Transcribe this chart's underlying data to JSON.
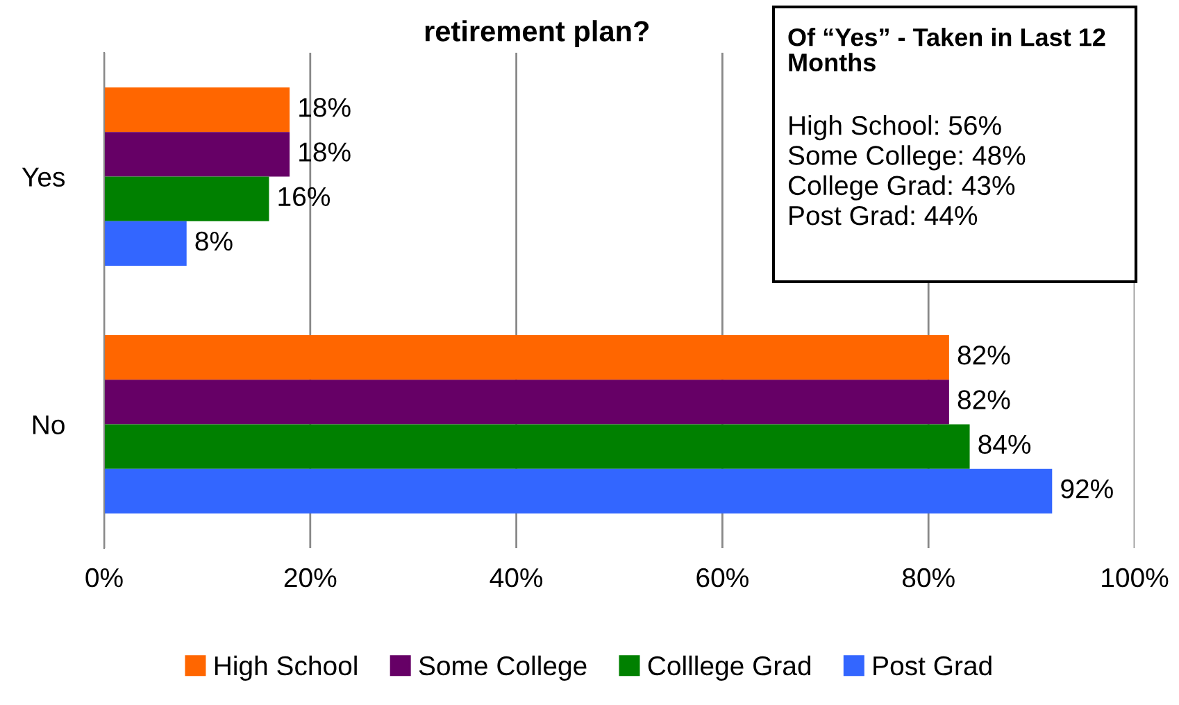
{
  "chart_data": {
    "type": "bar",
    "orientation": "horizontal",
    "title": "retirement plan?",
    "categories": [
      "Yes",
      "No"
    ],
    "series": [
      {
        "name": "High School",
        "color": "#ff6600",
        "values": [
          18,
          82
        ],
        "value_labels": [
          "18%",
          "82%"
        ]
      },
      {
        "name": "Some College",
        "color": "#660066",
        "values": [
          18,
          82
        ],
        "value_labels": [
          "18%",
          "82%"
        ]
      },
      {
        "name": "Colllege Grad",
        "color": "#008000",
        "values": [
          16,
          84
        ],
        "value_labels": [
          "16%",
          "84%"
        ]
      },
      {
        "name": "Post Grad",
        "color": "#3366ff",
        "values": [
          8,
          92
        ],
        "value_labels": [
          "8%",
          "92%"
        ]
      }
    ],
    "xlim": [
      0,
      100
    ],
    "xticks": [
      {
        "value": 0,
        "label": "0%"
      },
      {
        "value": 20,
        "label": "20%"
      },
      {
        "value": 40,
        "label": "40%"
      },
      {
        "value": 60,
        "label": "60%"
      },
      {
        "value": 80,
        "label": "80%"
      },
      {
        "value": 100,
        "label": "100%"
      }
    ],
    "grid": "x",
    "legend": "bottom",
    "annotations": [
      "Of “Yes” - Taken in Last 12 Months",
      "High School: 56%",
      "Some College: 48%",
      "College Grad: 43%",
      "Post Grad: 44%"
    ]
  }
}
